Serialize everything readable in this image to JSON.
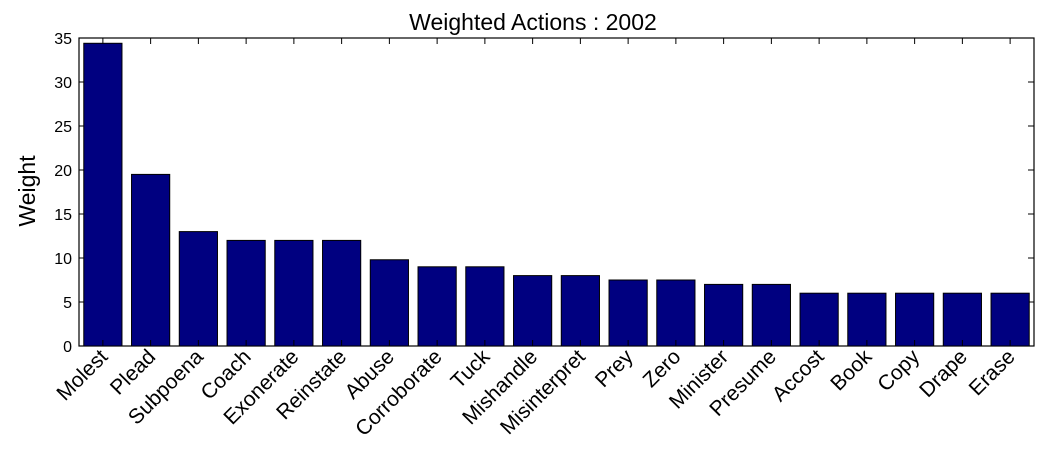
{
  "chart_data": {
    "type": "bar",
    "title": "Weighted Actions : 2002",
    "xlabel": "",
    "ylabel": "Weight",
    "ylim": [
      0,
      35
    ],
    "yticks": [
      0,
      5,
      10,
      15,
      20,
      25,
      30,
      35
    ],
    "categories": [
      "Molest",
      "Plead",
      "Subpoena",
      "Coach",
      "Exonerate",
      "Reinstate",
      "Abuse",
      "Corroborate",
      "Tuck",
      "Mishandle",
      "Misinterpret",
      "Prey",
      "Zero",
      "Minister",
      "Presume",
      "Accost",
      "Book",
      "Copy",
      "Drape",
      "Erase"
    ],
    "values": [
      34.4,
      19.5,
      13,
      12,
      12,
      12,
      9.8,
      9,
      9,
      8,
      8,
      7.5,
      7.5,
      7,
      7,
      6,
      6,
      6,
      6,
      6
    ],
    "bar_color": "#000080",
    "grid": false,
    "legend": "none"
  }
}
